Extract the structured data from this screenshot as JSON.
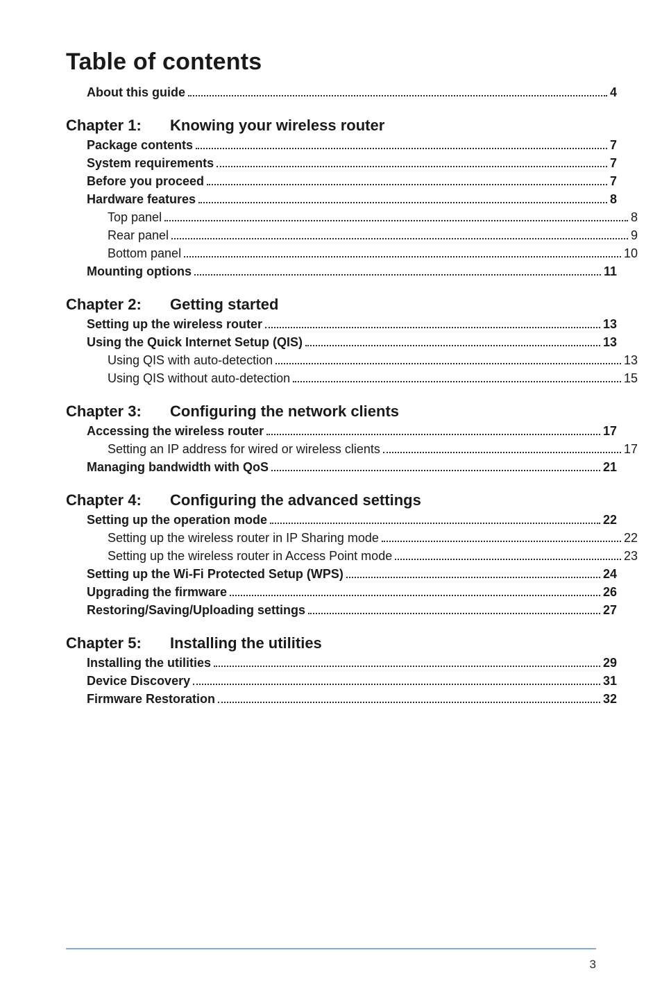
{
  "title": "Table of contents",
  "page_number": "3",
  "colors": {
    "text": "#1a1a1a",
    "dots": "#2a2a2a",
    "rule": "#86a9cf",
    "background": "#ffffff"
  },
  "fonts": {
    "title_size_pt": 26,
    "chapter_size_pt": 17,
    "entry_size_pt": 13
  },
  "intro": [
    {
      "label": "About this guide",
      "page": "4",
      "bold": true,
      "indent": 1
    }
  ],
  "chapters": [
    {
      "num": "Chapter 1:",
      "title": "Knowing your wireless router",
      "entries": [
        {
          "label": "Package contents",
          "page": "7",
          "bold": true,
          "indent": 1
        },
        {
          "label": "System requirements",
          "page": "7",
          "bold": true,
          "indent": 1
        },
        {
          "label": "Before you proceed",
          "page": "7",
          "bold": true,
          "indent": 1
        },
        {
          "label": "Hardware features",
          "page": "8",
          "bold": true,
          "indent": 1
        },
        {
          "label": "Top panel",
          "page": "8",
          "bold": false,
          "indent": 2
        },
        {
          "label": "Rear panel",
          "page": "9",
          "bold": false,
          "indent": 2
        },
        {
          "label": "Bottom panel",
          "page": "10",
          "bold": false,
          "indent": 2
        },
        {
          "label": "Mounting options",
          "page": "11",
          "bold": true,
          "indent": 1
        }
      ]
    },
    {
      "num": "Chapter 2:",
      "title": "Getting started",
      "entries": [
        {
          "label": "Setting up the wireless router",
          "page": "13",
          "bold": true,
          "indent": 1
        },
        {
          "label": "Using the Quick Internet Setup (QIS)",
          "page": "13",
          "bold": true,
          "indent": 1
        },
        {
          "label": "Using QIS with auto-detection",
          "page": "13",
          "bold": false,
          "indent": 2
        },
        {
          "label": "Using QIS without auto-detection",
          "page": "15",
          "bold": false,
          "indent": 2
        }
      ]
    },
    {
      "num": "Chapter 3:",
      "title": "Configuring the network clients",
      "entries": [
        {
          "label": "Accessing the wireless router",
          "page": "17",
          "bold": true,
          "indent": 1
        },
        {
          "label": "Setting an IP address for wired or wireless clients",
          "page": "17",
          "bold": false,
          "indent": 2
        },
        {
          "label": "Managing bandwidth with QoS",
          "page": "21",
          "bold": true,
          "indent": 1
        }
      ]
    },
    {
      "num": "Chapter 4:",
      "title": "Configuring the advanced settings",
      "entries": [
        {
          "label": "Setting up the operation mode",
          "page": "22",
          "bold": true,
          "indent": 1
        },
        {
          "label": "Setting up the wireless router in IP Sharing mode",
          "page": "22",
          "bold": false,
          "indent": 2
        },
        {
          "label": "Setting up the wireless router in Access Point mode",
          "page": "23",
          "bold": false,
          "indent": 2
        },
        {
          "label": "Setting up the Wi-Fi Protected Setup (WPS)",
          "page": "24",
          "bold": true,
          "indent": 1
        },
        {
          "label": "Upgrading the firmware",
          "page": "26",
          "bold": true,
          "indent": 1
        },
        {
          "label": "Restoring/Saving/Uploading settings",
          "page": "27",
          "bold": true,
          "indent": 1
        }
      ]
    },
    {
      "num": "Chapter 5:",
      "title": "Installing the utilities",
      "entries": [
        {
          "label": "Installing the utilities",
          "page": "29",
          "bold": true,
          "indent": 1
        },
        {
          "label": "Device Discovery",
          "page": "31",
          "bold": true,
          "indent": 1
        },
        {
          "label": "Firmware Restoration",
          "page": "32",
          "bold": true,
          "indent": 1
        }
      ]
    }
  ]
}
